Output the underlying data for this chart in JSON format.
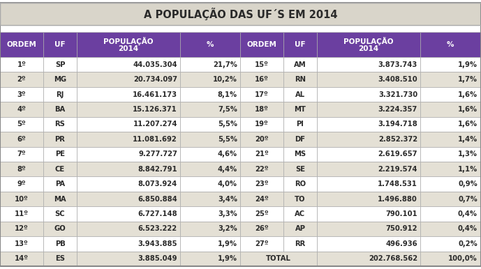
{
  "title": "A POPULAÇÃO DAS UF´S EM 2014",
  "header_bg": "#6B3FA0",
  "header_fg": "#FFFFFF",
  "title_bg": "#D9D5CA",
  "gap_bg": "#FFFFFF",
  "row_odd_bg": "#FFFFFF",
  "row_even_bg": "#E4E0D5",
  "border_color": "#AAAAAA",
  "outer_border": "#888888",
  "text_color": "#2A2A2A",
  "left_data": [
    [
      "1º",
      "SP",
      "44.035.304",
      "21,7%"
    ],
    [
      "2º",
      "MG",
      "20.734.097",
      "10,2%"
    ],
    [
      "3º",
      "RJ",
      "16.461.173",
      "8,1%"
    ],
    [
      "4º",
      "BA",
      "15.126.371",
      "7,5%"
    ],
    [
      "5º",
      "RS",
      "11.207.274",
      "5,5%"
    ],
    [
      "6º",
      "PR",
      "11.081.692",
      "5,5%"
    ],
    [
      "7º",
      "PE",
      "9.277.727",
      "4,6%"
    ],
    [
      "8º",
      "CE",
      "8.842.791",
      "4,4%"
    ],
    [
      "9º",
      "PA",
      "8.073.924",
      "4,0%"
    ],
    [
      "10º",
      "MA",
      "6.850.884",
      "3,4%"
    ],
    [
      "11º",
      "SC",
      "6.727.148",
      "3,3%"
    ],
    [
      "12º",
      "GO",
      "6.523.222",
      "3,2%"
    ],
    [
      "13º",
      "PB",
      "3.943.885",
      "1,9%"
    ],
    [
      "14º",
      "ES",
      "3.885.049",
      "1,9%"
    ]
  ],
  "right_data": [
    [
      "15º",
      "AM",
      "3.873.743",
      "1,9%"
    ],
    [
      "16º",
      "RN",
      "3.408.510",
      "1,7%"
    ],
    [
      "17º",
      "AL",
      "3.321.730",
      "1,6%"
    ],
    [
      "18º",
      "MT",
      "3.224.357",
      "1,6%"
    ],
    [
      "19º",
      "PI",
      "3.194.718",
      "1,6%"
    ],
    [
      "20º",
      "DF",
      "2.852.372",
      "1,4%"
    ],
    [
      "21º",
      "MS",
      "2.619.657",
      "1,3%"
    ],
    [
      "22º",
      "SE",
      "2.219.574",
      "1,1%"
    ],
    [
      "23º",
      "RO",
      "1.748.531",
      "0,9%"
    ],
    [
      "24º",
      "TO",
      "1.496.880",
      "0,7%"
    ],
    [
      "25º",
      "AC",
      "790.101",
      "0,4%"
    ],
    [
      "26º",
      "AP",
      "750.912",
      "0,4%"
    ],
    [
      "27º",
      "RR",
      "496.936",
      "0,2%"
    ],
    [
      "TOTAL",
      "",
      "202.768.562",
      "100,0%"
    ]
  ],
  "col_headers": [
    "ORDEM",
    "UF",
    "POPULAÇÃO\n2014",
    "%"
  ]
}
